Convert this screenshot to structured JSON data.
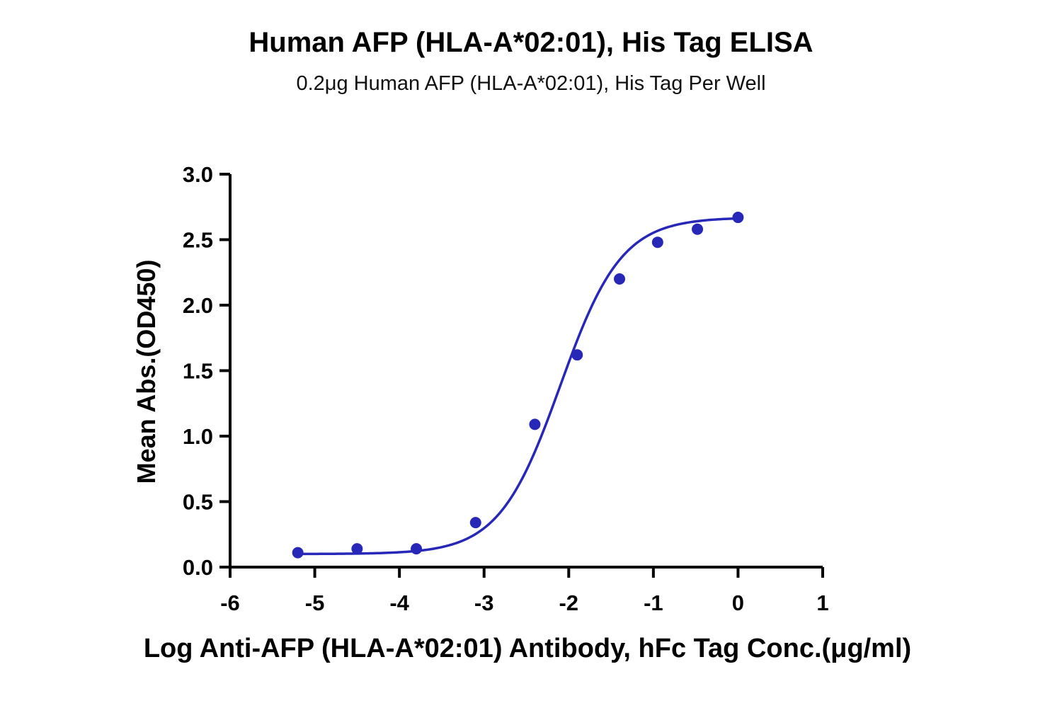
{
  "chart_data": {
    "type": "scatter",
    "title": "Human AFP (HLA-A*02:01), His Tag ELISA",
    "subtitle": "0.2μg Human AFP (HLA-A*02:01), His Tag Per Well",
    "xlabel": "Log Anti-AFP (HLA-A*02:01) Antibody, hFc Tag Conc.(μg/ml)",
    "ylabel": "Mean Abs.(OD450)",
    "xlim": [
      -6,
      1
    ],
    "ylim": [
      0,
      3.0
    ],
    "x_ticks": [
      "-6",
      "-5",
      "-4",
      "-3",
      "-2",
      "-1",
      "0",
      "1"
    ],
    "y_ticks": [
      "0.0",
      "0.5",
      "1.0",
      "1.5",
      "2.0",
      "2.5",
      "3.0"
    ],
    "grid": false,
    "colors": {
      "series": "#2727b8"
    },
    "series": [
      {
        "points": [
          {
            "x": -5.2,
            "y": 0.11
          },
          {
            "x": -4.5,
            "y": 0.14
          },
          {
            "x": -3.8,
            "y": 0.14
          },
          {
            "x": -3.1,
            "y": 0.34
          },
          {
            "x": -2.4,
            "y": 1.09
          },
          {
            "x": -1.9,
            "y": 1.62
          },
          {
            "x": -1.4,
            "y": 2.2
          },
          {
            "x": -0.95,
            "y": 2.48
          },
          {
            "x": -0.48,
            "y": 2.58
          },
          {
            "x": 0.0,
            "y": 2.67
          }
        ],
        "fit": {
          "model": "4PL",
          "bottom": 0.1,
          "top": 2.67,
          "logEC50": -2.1,
          "hill": 1.2
        }
      }
    ]
  }
}
